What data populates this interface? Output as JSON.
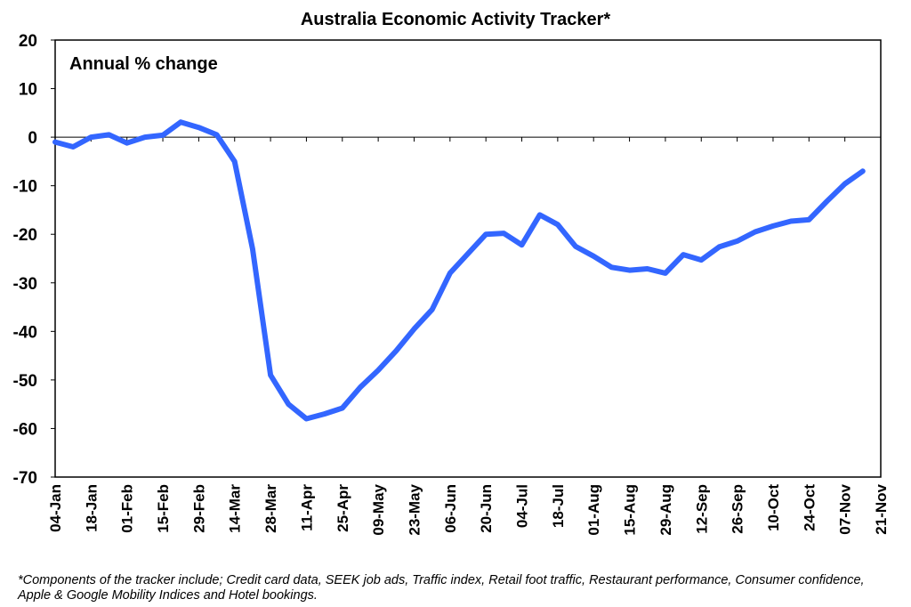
{
  "chart_data": {
    "type": "line",
    "title": "Australia Economic Activity Tracker*",
    "inner_label": "Annual % change",
    "ylim": [
      -70,
      20
    ],
    "yticks": [
      "20",
      "10",
      "0",
      "-10",
      "-20",
      "-30",
      "-40",
      "-50",
      "-60",
      "-70"
    ],
    "xticks": [
      "04-Jan",
      "18-Jan",
      "01-Feb",
      "15-Feb",
      "29-Feb",
      "14-Mar",
      "28-Mar",
      "11-Apr",
      "25-Apr",
      "09-May",
      "23-May",
      "06-Jun",
      "20-Jun",
      "04-Jul",
      "18-Jul",
      "01-Aug",
      "15-Aug",
      "29-Aug",
      "12-Sep",
      "26-Sep",
      "10-Oct",
      "24-Oct",
      "07-Nov",
      "21-Nov"
    ],
    "grid": false,
    "line_color": "#3366ff",
    "series": [
      {
        "x": [
          "04-Jan",
          "11-Jan",
          "18-Jan",
          "25-Jan",
          "01-Feb",
          "08-Feb",
          "15-Feb",
          "22-Feb",
          "29-Feb",
          "07-Mar",
          "14-Mar",
          "21-Mar",
          "28-Mar",
          "04-Apr",
          "11-Apr",
          "18-Apr",
          "25-Apr",
          "02-May",
          "09-May",
          "16-May",
          "23-May",
          "30-May",
          "06-Jun",
          "13-Jun",
          "20-Jun",
          "27-Jun",
          "04-Jul",
          "11-Jul",
          "18-Jul",
          "25-Jul",
          "01-Aug",
          "08-Aug",
          "15-Aug",
          "22-Aug",
          "29-Aug",
          "05-Sep",
          "12-Sep",
          "19-Sep",
          "26-Sep",
          "03-Oct",
          "10-Oct",
          "17-Oct",
          "24-Oct",
          "31-Oct",
          "07-Nov",
          "14-Nov"
        ],
        "values": [
          -1,
          -2,
          0,
          0.5,
          -1.2,
          0,
          0.4,
          3.1,
          2,
          0.5,
          -5,
          -23,
          -49,
          -55,
          -58,
          -57,
          -55.8,
          -51.5,
          -48,
          -44,
          -39.5,
          -35.5,
          -28,
          -24,
          -20,
          -19.8,
          -22.2,
          -16,
          -18,
          -22.5,
          -24.5,
          -26.8,
          -27.4,
          -27.1,
          -28,
          -24.2,
          -25.3,
          -22.6,
          -21.4,
          -19.5,
          -18.3,
          -17.3,
          -17,
          -13.2,
          -9.6,
          -7
        ]
      }
    ]
  },
  "footnote": "*Components of the tracker include; Credit card data, SEEK job ads, Traffic index, Retail foot traffic, Restaurant performance, Consumer confidence, Apple & Google Mobility Indices and Hotel bookings."
}
